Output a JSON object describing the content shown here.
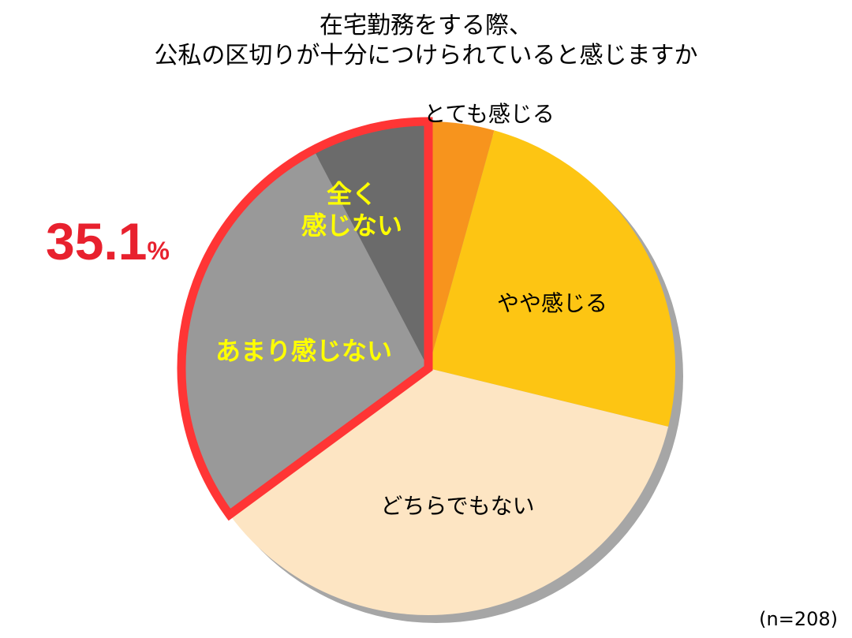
{
  "chart_data": {
    "type": "pie",
    "title": "在宅勤務をする際、\n公私の区切りが十分につけられていると感じますか",
    "categories": [
      "とても感じる",
      "やや感じる",
      "どちらでもない",
      "あまり感じない",
      "全く\n感じない"
    ],
    "values": [
      4.3,
      24.5,
      36.1,
      27.4,
      7.7
    ],
    "colors": [
      "#f7941d",
      "#fdc513",
      "#fde5c3",
      "#999999",
      "#6b6b6b"
    ],
    "annotation": {
      "value": "35.1",
      "unit": "%"
    },
    "note": "(n=208)"
  }
}
